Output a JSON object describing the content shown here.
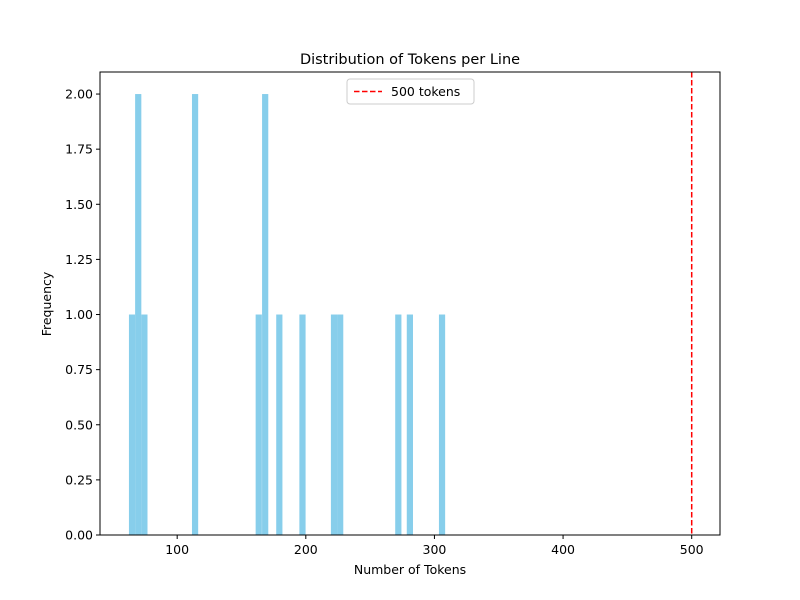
{
  "chart_data": {
    "type": "bar",
    "title": "Distribution of Tokens per Line",
    "xlabel": "Number of Tokens",
    "ylabel": "Frequency",
    "xlim": [
      40,
      522
    ],
    "ylim": [
      0,
      2.1
    ],
    "x_ticks": [
      100,
      200,
      300,
      400,
      500
    ],
    "y_ticks": [
      "0.00",
      "0.25",
      "0.50",
      "0.75",
      "1.00",
      "1.25",
      "1.50",
      "1.75",
      "2.00"
    ],
    "bin_width": 4.83,
    "bars": [
      {
        "x": 62.5,
        "count": 1
      },
      {
        "x": 67.3,
        "count": 2
      },
      {
        "x": 72.1,
        "count": 1
      },
      {
        "x": 111.5,
        "count": 2
      },
      {
        "x": 161.0,
        "count": 1
      },
      {
        "x": 166.0,
        "count": 2
      },
      {
        "x": 177.0,
        "count": 1
      },
      {
        "x": 195.0,
        "count": 1
      },
      {
        "x": 219.5,
        "count": 1
      },
      {
        "x": 224.3,
        "count": 1
      },
      {
        "x": 269.5,
        "count": 1
      },
      {
        "x": 278.5,
        "count": 1
      },
      {
        "x": 303.5,
        "count": 1
      }
    ],
    "bar_color": "#87ceeb",
    "reference_line": {
      "x": 500,
      "color": "#ff0000",
      "style": "dashed",
      "label": "500 tokens"
    },
    "legend": {
      "position": "top-center",
      "entries": [
        "500 tokens"
      ]
    },
    "grid": false
  }
}
